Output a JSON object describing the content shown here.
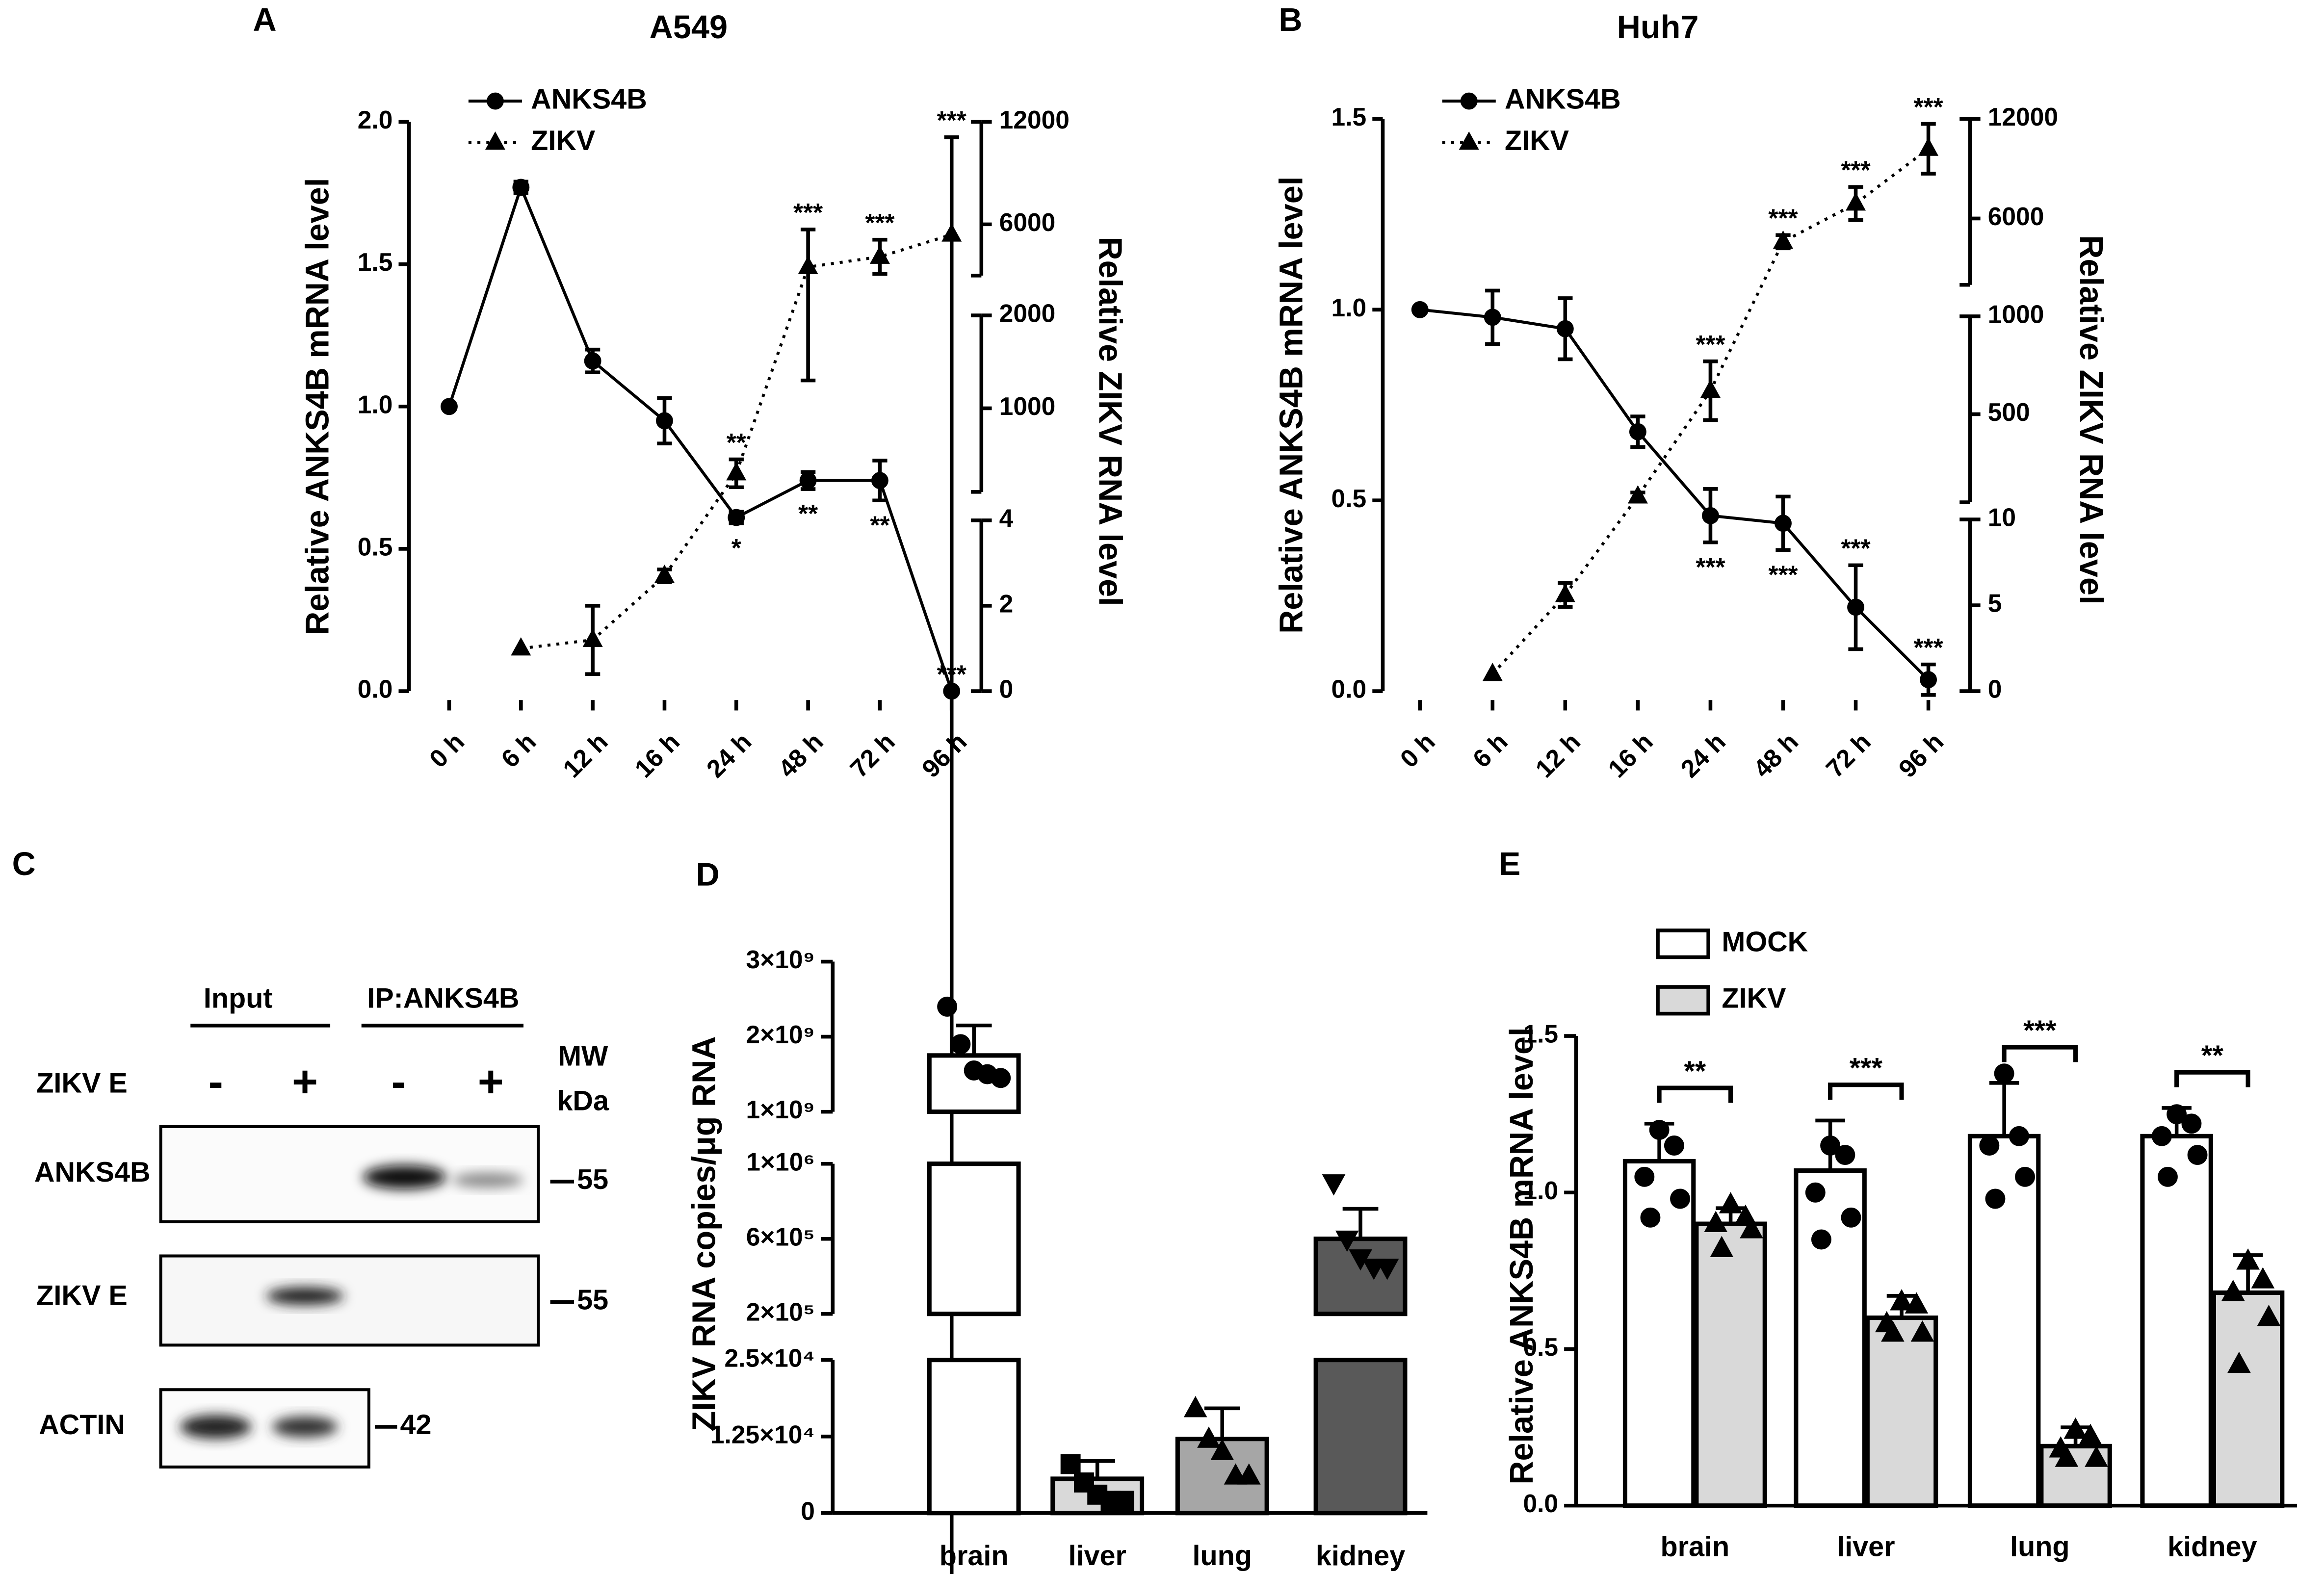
{
  "panels": [
    "A",
    "B",
    "C",
    "D",
    "E"
  ],
  "blot": {
    "groups": [
      "Input",
      "IP:ANKS4B"
    ],
    "condition": "ZIKV E",
    "lanes": [
      "-",
      "+",
      "-",
      "+"
    ],
    "mw": "MW",
    "unit": "kDa",
    "rows": [
      {
        "label": "ANKS4B",
        "mw": "55"
      },
      {
        "label": "ZIKV E",
        "mw": "55"
      },
      {
        "label": "ACTIN",
        "mw": "42"
      }
    ]
  },
  "chart_data": [
    {
      "type": "line",
      "title": "A549",
      "y_label": "Relative ANKS4B mRNA level",
      "y2_label": "Relative ZIKV RNA level",
      "categories": [
        "0 h",
        "6 h",
        "12 h",
        "16 h",
        "24 h",
        "48 h",
        "72 h",
        "96 h"
      ],
      "ylim": [
        0,
        2
      ],
      "yticks": [
        {
          "value": 0,
          "label": "0.0"
        },
        {
          "value": 0.5,
          "label": "0.5"
        },
        {
          "value": 1,
          "label": "1.0"
        },
        {
          "value": 1.5,
          "label": "1.5"
        },
        {
          "value": 2,
          "label": "2.0"
        }
      ],
      "y2segments": [
        {
          "lim": [
            0,
            4
          ],
          "ticks": [
            0,
            2,
            4
          ]
        },
        {
          "lim": [
            100,
            2000
          ],
          "ticks": [
            1000,
            2000
          ]
        },
        {
          "lim": [
            3000,
            12000
          ],
          "ticks": [
            6000,
            12000
          ]
        }
      ],
      "series": [
        {
          "name": "ANKS4B",
          "color": "#000000",
          "style": "solid",
          "marker": "circle",
          "values": [
            1.0,
            1.77,
            1.16,
            0.95,
            0.61,
            0.74,
            0.74,
            0.0
          ],
          "errors": [
            0,
            0.02,
            0.04,
            0.08,
            0.02,
            0.03,
            0.07,
            0
          ],
          "significance": [
            null,
            null,
            null,
            null,
            "*",
            "**",
            "**",
            "***"
          ]
        },
        {
          "name": "ZIKV",
          "color": "#000000",
          "style": "dotted",
          "marker": "triangle",
          "axis": "y2",
          "values": [
            null,
            1,
            1.2,
            2.7,
            300,
            3500,
            4100,
            5400
          ],
          "errors": [
            null,
            0,
            0.8,
            0.15,
            150,
            2200,
            1000,
            5700
          ],
          "significance": [
            null,
            null,
            null,
            null,
            "**",
            "***",
            "***",
            "***"
          ]
        }
      ]
    },
    {
      "type": "line",
      "title": "Huh7",
      "y_label": "Relative ANKS4B mRNA level",
      "y2_label": "Relative ZIKV RNA level",
      "categories": [
        "0 h",
        "6 h",
        "12 h",
        "16 h",
        "24 h",
        "48 h",
        "72 h",
        "96 h"
      ],
      "ylim": [
        0,
        1.5
      ],
      "yticks": [
        {
          "value": 0,
          "label": "0.0"
        },
        {
          "value": 0.5,
          "label": "0.5"
        },
        {
          "value": 1,
          "label": "1.0"
        },
        {
          "value": 1.5,
          "label": "1.5"
        }
      ],
      "y2segments": [
        {
          "lim": [
            0,
            10
          ],
          "ticks": [
            0,
            5,
            10
          ]
        },
        {
          "lim": [
            50,
            1000
          ],
          "ticks": [
            500,
            1000
          ]
        },
        {
          "lim": [
            2000,
            12000
          ],
          "ticks": [
            6000,
            12000
          ]
        }
      ],
      "series": [
        {
          "name": "ANKS4B",
          "color": "#000000",
          "style": "solid",
          "marker": "circle",
          "values": [
            1.0,
            0.98,
            0.95,
            0.68,
            0.46,
            0.44,
            0.22,
            0.03
          ],
          "errors": [
            0,
            0.07,
            0.08,
            0.04,
            0.07,
            0.07,
            0.11,
            0.04
          ],
          "significance": [
            null,
            null,
            null,
            null,
            "***",
            "***",
            "***",
            "***"
          ]
        },
        {
          "name": "ZIKV",
          "color": "#000000",
          "style": "dotted",
          "marker": "triangle",
          "axis": "y2",
          "values": [
            null,
            1,
            5.6,
            80,
            620,
            4600,
            6900,
            10200
          ],
          "errors": [
            null,
            0,
            0.7,
            20,
            150,
            400,
            1000,
            1500
          ],
          "significance": [
            null,
            null,
            null,
            null,
            "***",
            "***",
            "***",
            "***"
          ]
        }
      ]
    },
    {
      "type": "broken-bar",
      "y_label": "ZIKV  RNA copies/μg RNA",
      "categories": [
        "brain",
        "liver",
        "lung",
        "kidney"
      ],
      "colors": [
        "#ffffff",
        "#d9d9d9",
        "#a6a6a6",
        "#595959"
      ],
      "markers": [
        "circle",
        "square",
        "triangle",
        "triangle-down"
      ],
      "values": [
        1750000000,
        5600,
        12100,
        600000
      ],
      "errors": [
        400000000,
        2900,
        5000,
        160000
      ],
      "points": [
        [
          2400000000,
          1900000000,
          1550000000,
          1500000000,
          1450000000
        ],
        [
          8000,
          5000,
          3000,
          2000,
          2000
        ],
        [
          17000,
          12000,
          10000,
          6000,
          6000
        ],
        [
          900000,
          600000,
          500000,
          450000,
          450000
        ]
      ],
      "segments": [
        {
          "lim": [
            0,
            25000
          ],
          "ticks": [
            0,
            {
              "value": 12500,
              "label": "1.25×10⁴"
            },
            {
              "value": 25000,
              "label": "2.5×10⁴"
            }
          ]
        },
        {
          "lim": [
            200000,
            1000000
          ],
          "ticks": [
            {
              "value": 200000,
              "label": "2×10⁵"
            },
            {
              "value": 600000,
              "label": "6×10⁵"
            },
            {
              "value": 1000000,
              "label": "1×10⁶"
            }
          ]
        },
        {
          "lim": [
            1000000000,
            3000000000
          ],
          "ticks": [
            {
              "value": 1000000000,
              "label": "1×10⁹"
            },
            {
              "value": 2000000000,
              "label": "2×10⁹"
            },
            {
              "value": 3000000000,
              "label": "3×10⁹"
            }
          ]
        }
      ]
    },
    {
      "type": "grouped-bar",
      "y_label": "Relative ANKS4B mRNA level",
      "categories": [
        "brain",
        "liver",
        "lung",
        "kidney"
      ],
      "ylim": [
        0,
        1.5
      ],
      "yticks": [
        {
          "value": 0,
          "label": "0.0"
        },
        {
          "value": 0.5,
          "label": "0.5"
        },
        {
          "value": 1,
          "label": "1.0"
        },
        {
          "value": 1.5,
          "label": "1.5"
        }
      ],
      "significance": [
        "**",
        "***",
        "***",
        "**"
      ],
      "series": [
        {
          "name": "MOCK",
          "color": "#ffffff",
          "marker": "circle",
          "values": [
            1.1,
            1.07,
            1.18,
            1.18
          ],
          "errors": [
            0.12,
            0.16,
            0.17,
            0.09
          ],
          "points": [
            [
              1.2,
              1.15,
              1.05,
              0.98,
              0.92
            ],
            [
              1.15,
              1.12,
              1.0,
              0.92,
              0.85
            ],
            [
              1.38,
              1.18,
              1.15,
              1.05,
              0.98
            ],
            [
              1.25,
              1.22,
              1.18,
              1.12,
              1.05
            ]
          ]
        },
        {
          "name": "ZIKV",
          "color": "#d9d9d9",
          "marker": "triangle",
          "values": [
            0.9,
            0.6,
            0.19,
            0.68
          ],
          "errors": [
            0.05,
            0.07,
            0.06,
            0.12
          ],
          "points": [
            [
              0.96,
              0.92,
              0.9,
              0.88,
              0.82
            ],
            [
              0.65,
              0.64,
              0.58,
              0.55,
              0.55
            ],
            [
              0.24,
              0.22,
              0.18,
              0.15,
              0.15
            ],
            [
              0.78,
              0.72,
              0.68,
              0.6,
              0.45
            ]
          ]
        }
      ]
    }
  ]
}
